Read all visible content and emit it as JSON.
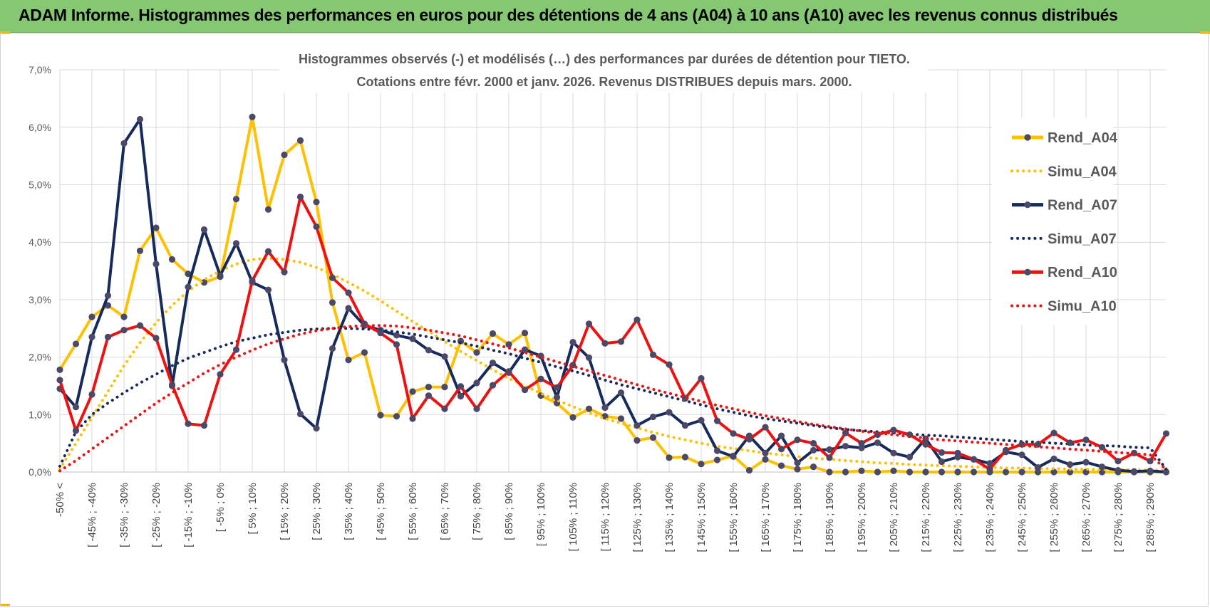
{
  "header": {
    "title": "ADAM Informe. Histogrammes des performances en euros pour des détentions de 4 ans (A04) à 10 ans (A10) avec les revenus connus distribués"
  },
  "chart_data": {
    "type": "line",
    "title_line1": "Histogrammes observés (-) et modélisés (…) des performances par durées de détention pour TIETO.",
    "title_line2": "Cotations entre févr. 2000 et janv. 2026. Revenus DISTRIBUES depuis mars. 2000.",
    "ylim": [
      0,
      7
    ],
    "yticks": [
      "0,0%",
      "1,0%",
      "2,0%",
      "3,0%",
      "4,0%",
      "5,0%",
      "6,0%",
      "7,0%"
    ],
    "x_tick_labels": [
      "-50% <",
      "[ -45% ; -40%",
      "[ -35% ; -30%",
      "[ -25% ; -20%",
      "[ -15% ; -10%",
      "[ -5% ; 0%",
      "[ 5% ; 10%",
      "[ 15% ; 20%",
      "[ 25% ; 30%",
      "[ 35% ; 40%",
      "[ 45% ; 50%",
      "[ 55% ; 60%",
      "[ 65% ; 70%",
      "[ 75% ; 80%",
      "[ 85% ; 90%",
      "[ 95% ; 100%",
      "[ 105% ; 110%",
      "[ 115% ; 120%",
      "[ 125% ; 130%",
      "[ 135% ; 140%",
      "[ 145% ; 150%",
      "[ 155% ; 160%",
      "[ 165% ; 170%",
      "[ 175% ; 180%",
      "[ 185% ; 190%",
      "[ 195% ; 200%",
      "[ 205% ; 210%",
      "[ 215% ; 220%",
      "[ 225% ; 230%",
      "[ 235% ; 240%",
      "[ 245% ; 250%",
      "[ 255% ; 260%",
      "[ 265% ; 270%",
      "[ 275% ; 280%",
      "[ 285% ; 290%"
    ],
    "n_points": 70,
    "legend_position": "right",
    "grid": true,
    "series": [
      {
        "name": "Rend_A04",
        "color": "#ffc000",
        "style": "solid",
        "markers": true,
        "values": [
          1.78,
          2.23,
          2.7,
          2.9,
          2.7,
          3.85,
          4.25,
          3.7,
          3.45,
          3.3,
          3.4,
          4.75,
          6.18,
          4.57,
          5.52,
          5.77,
          4.7,
          2.95,
          1.95,
          2.08,
          0.99,
          0.97,
          1.4,
          1.48,
          1.48,
          2.28,
          2.08,
          2.41,
          2.22,
          2.42,
          1.33,
          1.2,
          0.95,
          1.1,
          0.97,
          0.93,
          0.55,
          0.6,
          0.25,
          0.26,
          0.14,
          0.21,
          0.28,
          0.03,
          0.22,
          0.11,
          0.05,
          0.09,
          0.0,
          0.0,
          0.02,
          0.0,
          0.02,
          0.0,
          0.0,
          0.0,
          0.0,
          0.0,
          0.0,
          0.0,
          0.0,
          0.0,
          0.0,
          0.0,
          0.0,
          0.0,
          0.0,
          0.0,
          0.0,
          0.0
        ]
      },
      {
        "name": "Simu_A04",
        "color": "#ffc000",
        "style": "dotted",
        "markers": false,
        "values": [
          0.05,
          0.5,
          0.95,
          1.4,
          1.85,
          2.25,
          2.6,
          2.9,
          3.15,
          3.35,
          3.5,
          3.62,
          3.7,
          3.72,
          3.7,
          3.65,
          3.56,
          3.44,
          3.3,
          3.15,
          2.98,
          2.8,
          2.62,
          2.45,
          2.27,
          2.1,
          1.94,
          1.78,
          1.63,
          1.5,
          1.37,
          1.25,
          1.14,
          1.03,
          0.93,
          0.85,
          0.77,
          0.69,
          0.62,
          0.56,
          0.5,
          0.45,
          0.41,
          0.37,
          0.33,
          0.3,
          0.27,
          0.24,
          0.22,
          0.2,
          0.18,
          0.16,
          0.15,
          0.13,
          0.12,
          0.11,
          0.1,
          0.09,
          0.08,
          0.07,
          0.07,
          0.06,
          0.06,
          0.05,
          0.05,
          0.04,
          0.04,
          0.04,
          0.03,
          0.03
        ]
      },
      {
        "name": "Rend_A07",
        "color": "#162a5c",
        "style": "solid",
        "markers": true,
        "values": [
          1.45,
          1.13,
          2.35,
          3.07,
          5.72,
          6.14,
          3.62,
          1.5,
          3.22,
          4.22,
          3.42,
          3.98,
          3.3,
          3.17,
          1.95,
          1.01,
          0.76,
          2.15,
          2.85,
          2.55,
          2.47,
          2.38,
          2.32,
          2.12,
          2.01,
          1.32,
          1.55,
          1.9,
          1.73,
          2.13,
          2.02,
          1.3,
          2.26,
          1.99,
          1.12,
          1.38,
          0.81,
          0.96,
          1.04,
          0.81,
          0.9,
          0.37,
          0.27,
          0.63,
          0.33,
          0.63,
          0.16,
          0.38,
          0.39,
          0.45,
          0.42,
          0.51,
          0.33,
          0.26,
          0.58,
          0.18,
          0.26,
          0.22,
          0.15,
          0.35,
          0.3,
          0.08,
          0.23,
          0.13,
          0.17,
          0.09,
          0.03,
          0.01,
          0.02,
          0.0
        ]
      },
      {
        "name": "Simu_A07",
        "color": "#162a5c",
        "style": "dotted",
        "markers": false,
        "values": [
          0.1,
          0.7,
          1.0,
          1.2,
          1.38,
          1.55,
          1.7,
          1.85,
          1.98,
          2.08,
          2.18,
          2.27,
          2.33,
          2.39,
          2.43,
          2.47,
          2.49,
          2.5,
          2.5,
          2.49,
          2.47,
          2.44,
          2.4,
          2.35,
          2.3,
          2.25,
          2.19,
          2.12,
          2.06,
          1.98,
          1.91,
          1.83,
          1.76,
          1.68,
          1.6,
          1.52,
          1.45,
          1.38,
          1.31,
          1.24,
          1.17,
          1.1,
          1.04,
          0.98,
          0.93,
          0.89,
          0.85,
          0.81,
          0.77,
          0.74,
          0.72,
          0.7,
          0.68,
          0.66,
          0.64,
          0.63,
          0.61,
          0.59,
          0.57,
          0.55,
          0.53,
          0.52,
          0.5,
          0.49,
          0.47,
          0.46,
          0.45,
          0.43,
          0.42,
          0.05
        ]
      },
      {
        "name": "Rend_A10",
        "color": "#f01010",
        "style": "solid",
        "markers": true,
        "values": [
          1.6,
          0.72,
          1.35,
          2.35,
          2.47,
          2.55,
          2.33,
          1.52,
          0.84,
          0.81,
          1.7,
          2.13,
          3.33,
          3.84,
          3.48,
          4.79,
          4.27,
          3.38,
          3.12,
          2.58,
          2.42,
          2.22,
          0.93,
          1.33,
          1.1,
          1.49,
          1.1,
          1.51,
          1.75,
          1.43,
          1.62,
          1.47,
          1.86,
          2.58,
          2.24,
          2.27,
          2.65,
          2.04,
          1.87,
          1.28,
          1.63,
          0.89,
          0.67,
          0.57,
          0.78,
          0.4,
          0.56,
          0.5,
          0.25,
          0.68,
          0.5,
          0.65,
          0.73,
          0.65,
          0.48,
          0.34,
          0.33,
          0.22,
          0.05,
          0.38,
          0.48,
          0.48,
          0.68,
          0.51,
          0.56,
          0.43,
          0.19,
          0.33,
          0.19,
          0.67
        ]
      },
      {
        "name": "Simu_A10",
        "color": "#f01010",
        "style": "dotted",
        "markers": false,
        "values": [
          0.02,
          0.2,
          0.4,
          0.6,
          0.8,
          1.0,
          1.2,
          1.38,
          1.55,
          1.72,
          1.87,
          2.0,
          2.12,
          2.23,
          2.32,
          2.4,
          2.46,
          2.5,
          2.53,
          2.55,
          2.55,
          2.54,
          2.51,
          2.47,
          2.42,
          2.37,
          2.3,
          2.23,
          2.16,
          2.08,
          2.0,
          1.92,
          1.84,
          1.76,
          1.68,
          1.6,
          1.52,
          1.44,
          1.37,
          1.3,
          1.23,
          1.16,
          1.1,
          1.04,
          0.98,
          0.93,
          0.88,
          0.83,
          0.79,
          0.75,
          0.71,
          0.68,
          0.65,
          0.62,
          0.59,
          0.56,
          0.54,
          0.52,
          0.5,
          0.48,
          0.46,
          0.44,
          0.42,
          0.4,
          0.38,
          0.36,
          0.34,
          0.32,
          0.3,
          0.04
        ]
      }
    ]
  }
}
